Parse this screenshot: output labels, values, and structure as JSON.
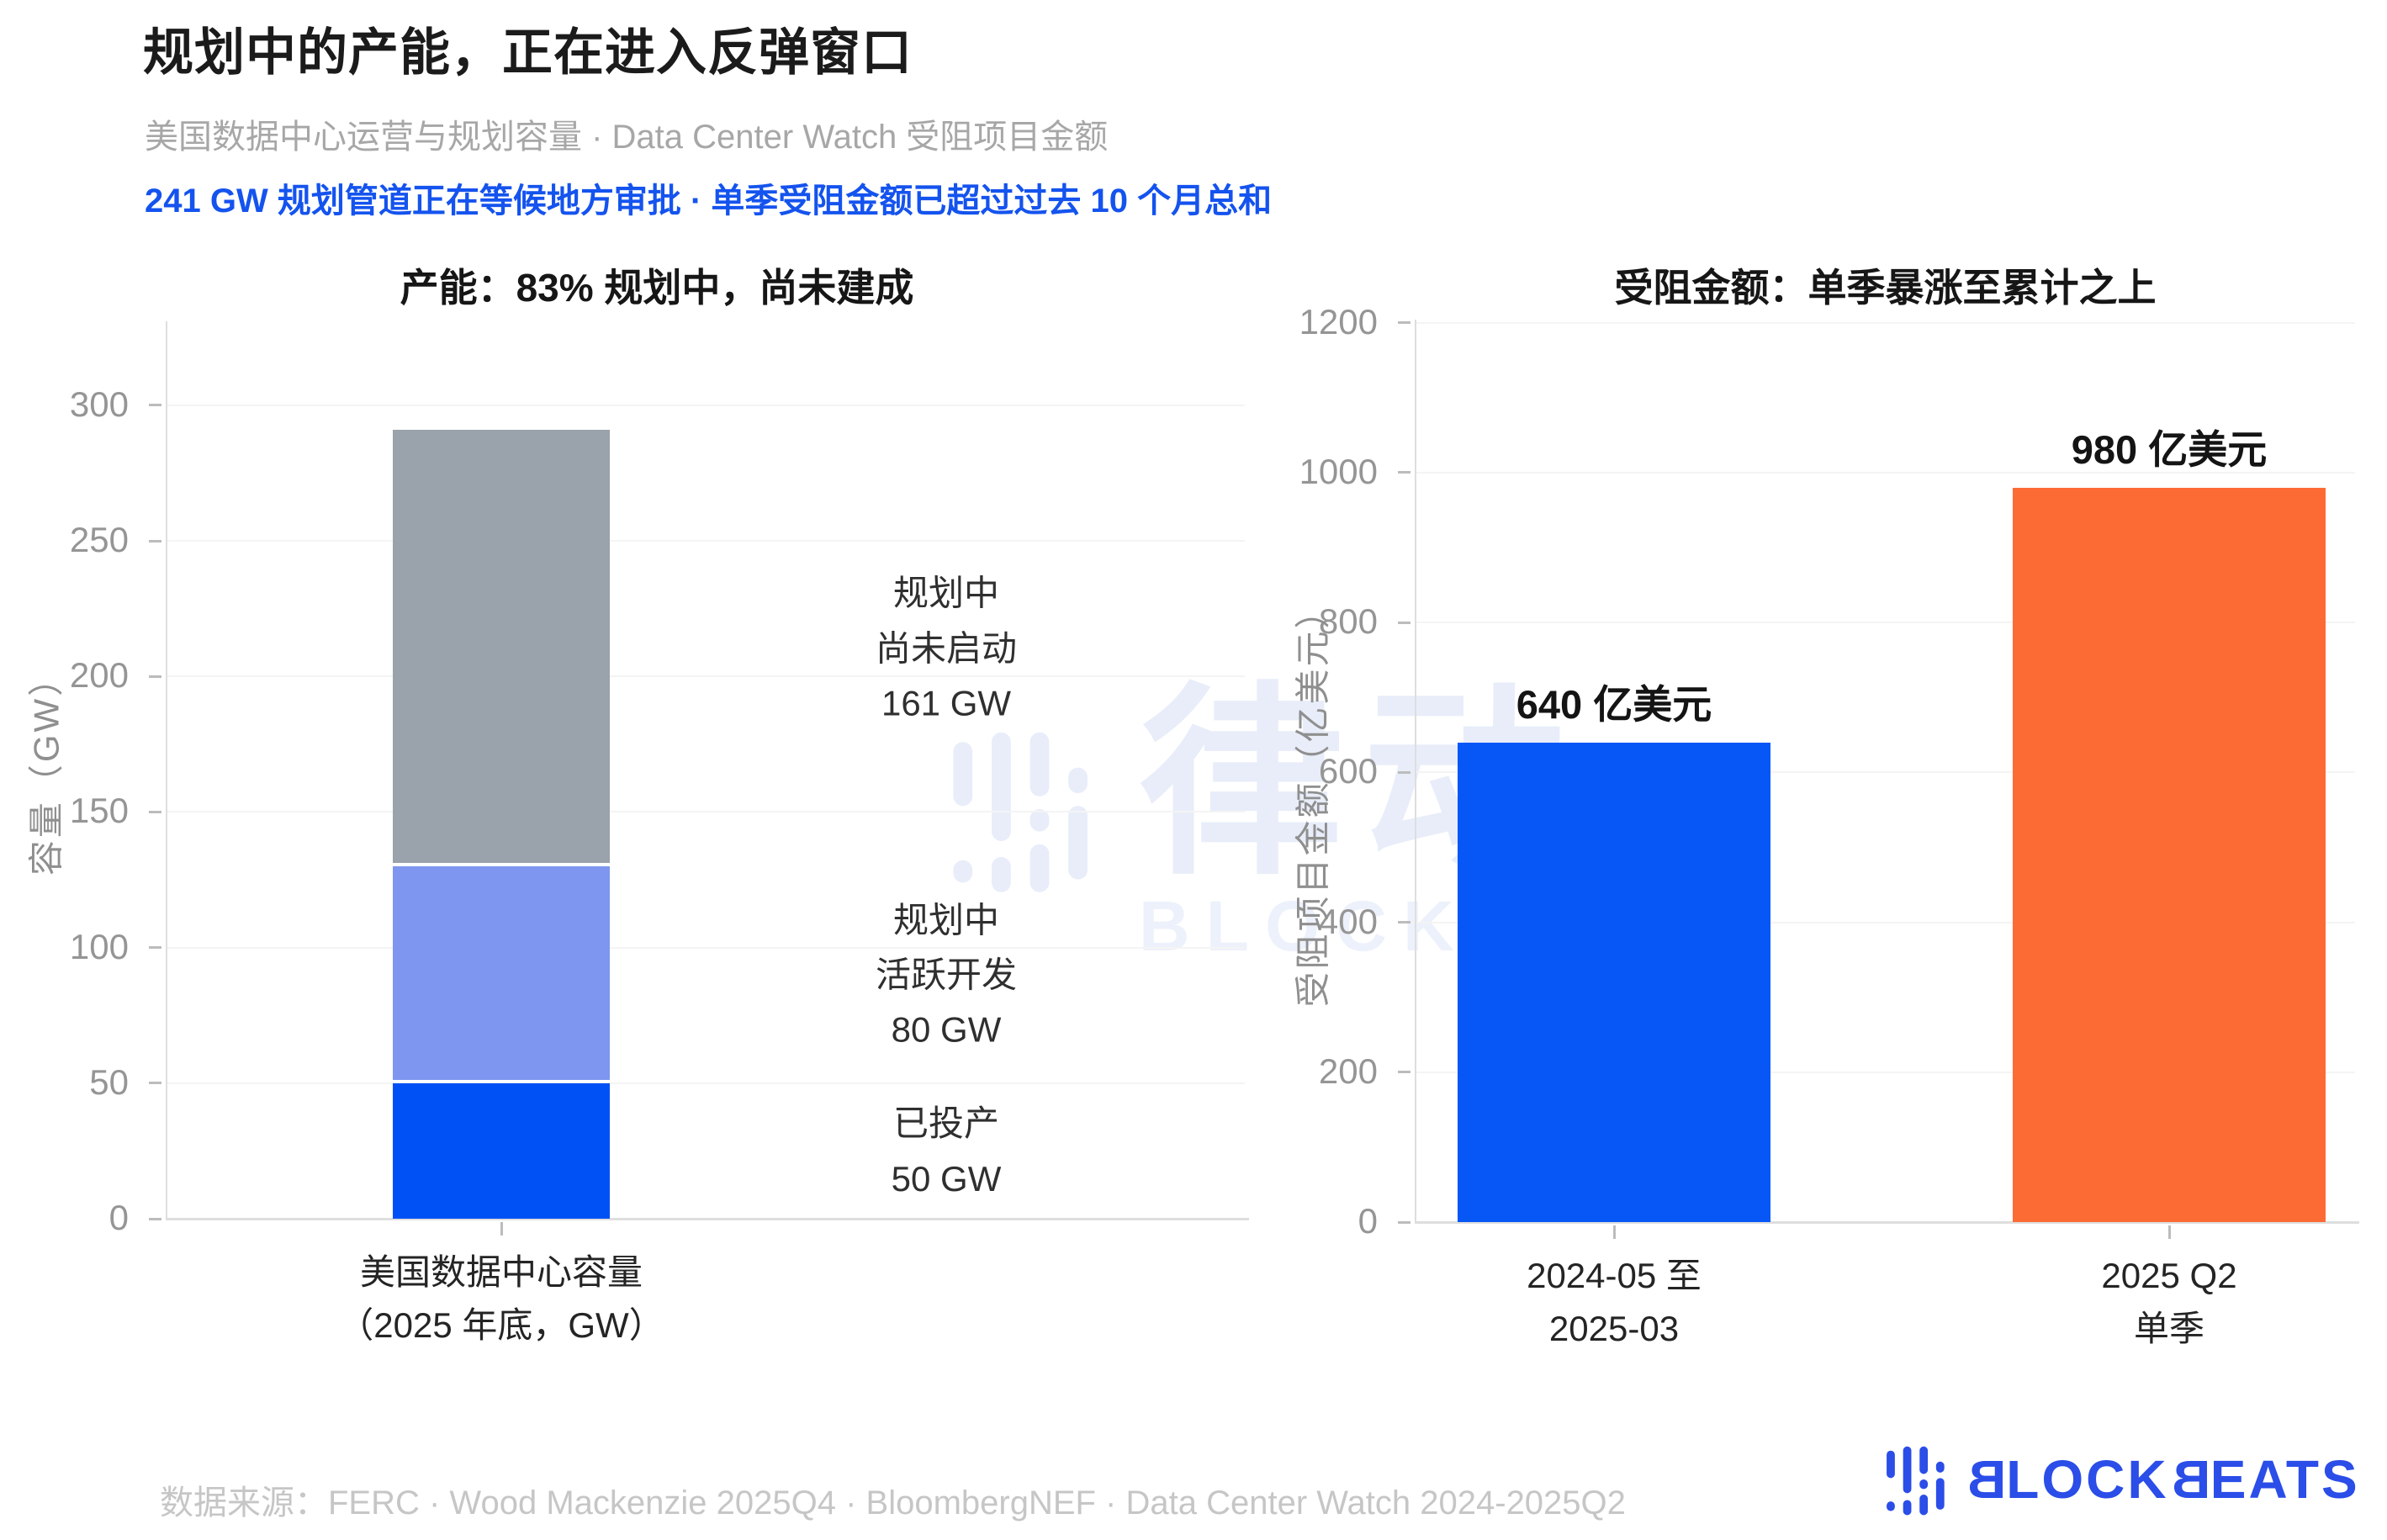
{
  "header": {
    "title": "规划中的产能，正在进入反弹窗口",
    "subtitle": "美国数据中心运营与规划容量 · Data Center Watch 受阻项目金额",
    "insight": "241 GW 规划管道正在等候地方审批 · 单季受阻金额已超过过去 10 个月总和"
  },
  "colors": {
    "insight_blue": "#1453ee",
    "operating_blue": "#0051f5",
    "active_dev_periwinkle": "#7e96f0",
    "not_started_gray": "#9aa2ac",
    "cumulative_blue": "#0757f7",
    "quarter_orange": "#fd6b35",
    "logo_blue": "#2b4de8",
    "watermark_blue": "#e8edf9",
    "watermark_en_blue": "#edf1fb"
  },
  "chart_data": [
    {
      "type": "bar",
      "stacked": true,
      "title": "产能：83% 规划中，尚未建成",
      "ylabel": "容量（GW）",
      "ylim": [
        0,
        331
      ],
      "yticks": [
        0,
        50,
        100,
        150,
        200,
        250,
        300
      ],
      "grid": true,
      "legend_position": "none",
      "categories": [
        [
          "美国数据中心容量",
          "（2025 年底，GW）"
        ]
      ],
      "series": [
        {
          "name": "已投产",
          "value": 50,
          "color": "#0051f5",
          "annotation": [
            "已投产",
            "50 GW"
          ]
        },
        {
          "name": "规划中 活跃开发",
          "value": 80,
          "color": "#7e96f0",
          "annotation": [
            "规划中",
            "活跃开发",
            "80 GW"
          ]
        },
        {
          "name": "规划中 尚未启动",
          "value": 161,
          "color": "#9aa2ac",
          "annotation": [
            "规划中",
            "尚未启动",
            "161 GW"
          ]
        }
      ],
      "total": 291
    },
    {
      "type": "bar",
      "stacked": false,
      "title": "受阻金额：单季暴涨至累计之上",
      "ylabel": "受阻项目金额（亿美元）",
      "ylim": [
        0,
        1204
      ],
      "yticks": [
        0,
        200,
        400,
        600,
        800,
        1000,
        1200
      ],
      "grid": true,
      "legend_position": "none",
      "categories": [
        [
          "2024-05 至",
          "2025-03"
        ],
        [
          "2025 Q2",
          "单季"
        ]
      ],
      "values": [
        640,
        980
      ],
      "bar_colors": [
        "#0757f7",
        "#fd6b35"
      ],
      "data_labels": [
        "640 亿美元",
        "980 亿美元"
      ]
    }
  ],
  "watermark": {
    "cn": "律动",
    "en": "BLOCKBEATS"
  },
  "footer": {
    "source": "数据来源：FERC · Wood Mackenzie 2025Q4 · BloombergNEF · Data Center Watch 2024-2025Q2",
    "logo_parts": [
      "B",
      "LOCK",
      "B",
      "EATS"
    ]
  }
}
